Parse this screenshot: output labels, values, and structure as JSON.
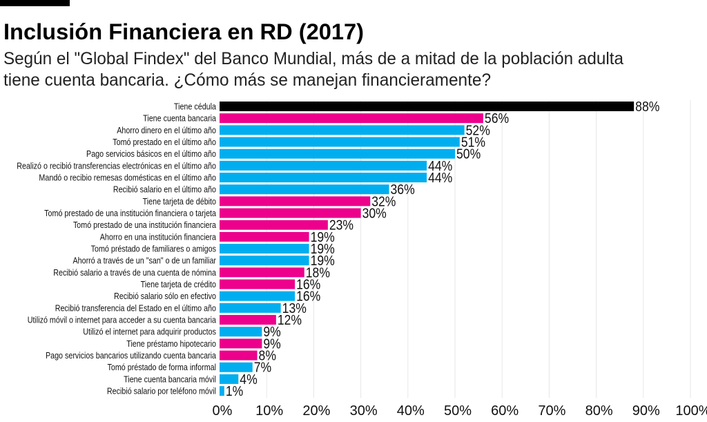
{
  "chart_data": {
    "type": "bar",
    "orientation": "horizontal",
    "title": "Inclusión Financiera en RD (2017)",
    "subtitle": [
      "Según el \"Global Findex\" del Banco Mundial, más de a mitad de la población adulta",
      "tiene cuenta bancaria. ¿Cómo más se manejan financieramente?"
    ],
    "categories": [
      "Tiene cédula",
      "Tiene cuenta bancaria",
      "Ahorro dinero en el último año",
      "Tomó prestado en el último año",
      "Pago servicios básicos en el último año",
      "Realizó o recibió transferencias electrónicas en el último año",
      "Mandó o recibio remesas domésticas en el último año",
      "Recibió salario en el último año",
      "Tiene tarjeta de débito",
      "Tomó prestado de una institución financiera o tarjeta",
      "Tomó prestado de una institución financiera",
      "Ahorro en una institución financiera",
      "Tomó préstado de familiares o amigos",
      "Ahorró a través de un \"san\" o de un familiar",
      "Recibió salario a través de una cuenta de nómina",
      "Tiene tarjeta de crédito",
      "Recibió salario sólo en efectivo",
      "Recibió transferencia del Estado en el último año",
      "Utilizó móvil o internet para acceder a su cuenta bancaria",
      "Utilizó el internet para adquirir productos",
      "Tiene préstamo hipotecario",
      "Pago servicios bancarios utilizando cuenta bancaria",
      "Tomó préstado de forma informal",
      "Tiene cuenta bancaria móvil",
      "Recibió salario por teléfono móvil"
    ],
    "values": [
      88,
      56,
      52,
      51,
      50,
      44,
      44,
      36,
      32,
      30,
      23,
      19,
      19,
      19,
      18,
      16,
      16,
      13,
      12,
      9,
      9,
      8,
      7,
      4,
      1
    ],
    "value_labels": [
      "88%",
      "56%",
      "52%",
      "51%",
      "50%",
      "44%",
      "44%",
      "36%",
      "32%",
      "30%",
      "23%",
      "19%",
      "19%",
      "19%",
      "18%",
      "16%",
      "16%",
      "13%",
      "12%",
      "9%",
      "9%",
      "8%",
      "7%",
      "4%",
      "1%"
    ],
    "bar_colors": [
      "#000000",
      "#ec008c",
      "#00aeef",
      "#00aeef",
      "#00aeef",
      "#00aeef",
      "#00aeef",
      "#00aeef",
      "#ec008c",
      "#ec008c",
      "#ec008c",
      "#ec008c",
      "#00aeef",
      "#00aeef",
      "#ec008c",
      "#ec008c",
      "#00aeef",
      "#00aeef",
      "#ec008c",
      "#00aeef",
      "#ec008c",
      "#ec008c",
      "#00aeef",
      "#00aeef",
      "#00aeef"
    ],
    "xlim": [
      0,
      100
    ],
    "x_ticks": [
      "0%",
      "10%",
      "20%",
      "30%",
      "40%",
      "50%",
      "60%",
      "70%",
      "80%",
      "90%",
      "100%"
    ],
    "grid": true,
    "legend": "none"
  }
}
